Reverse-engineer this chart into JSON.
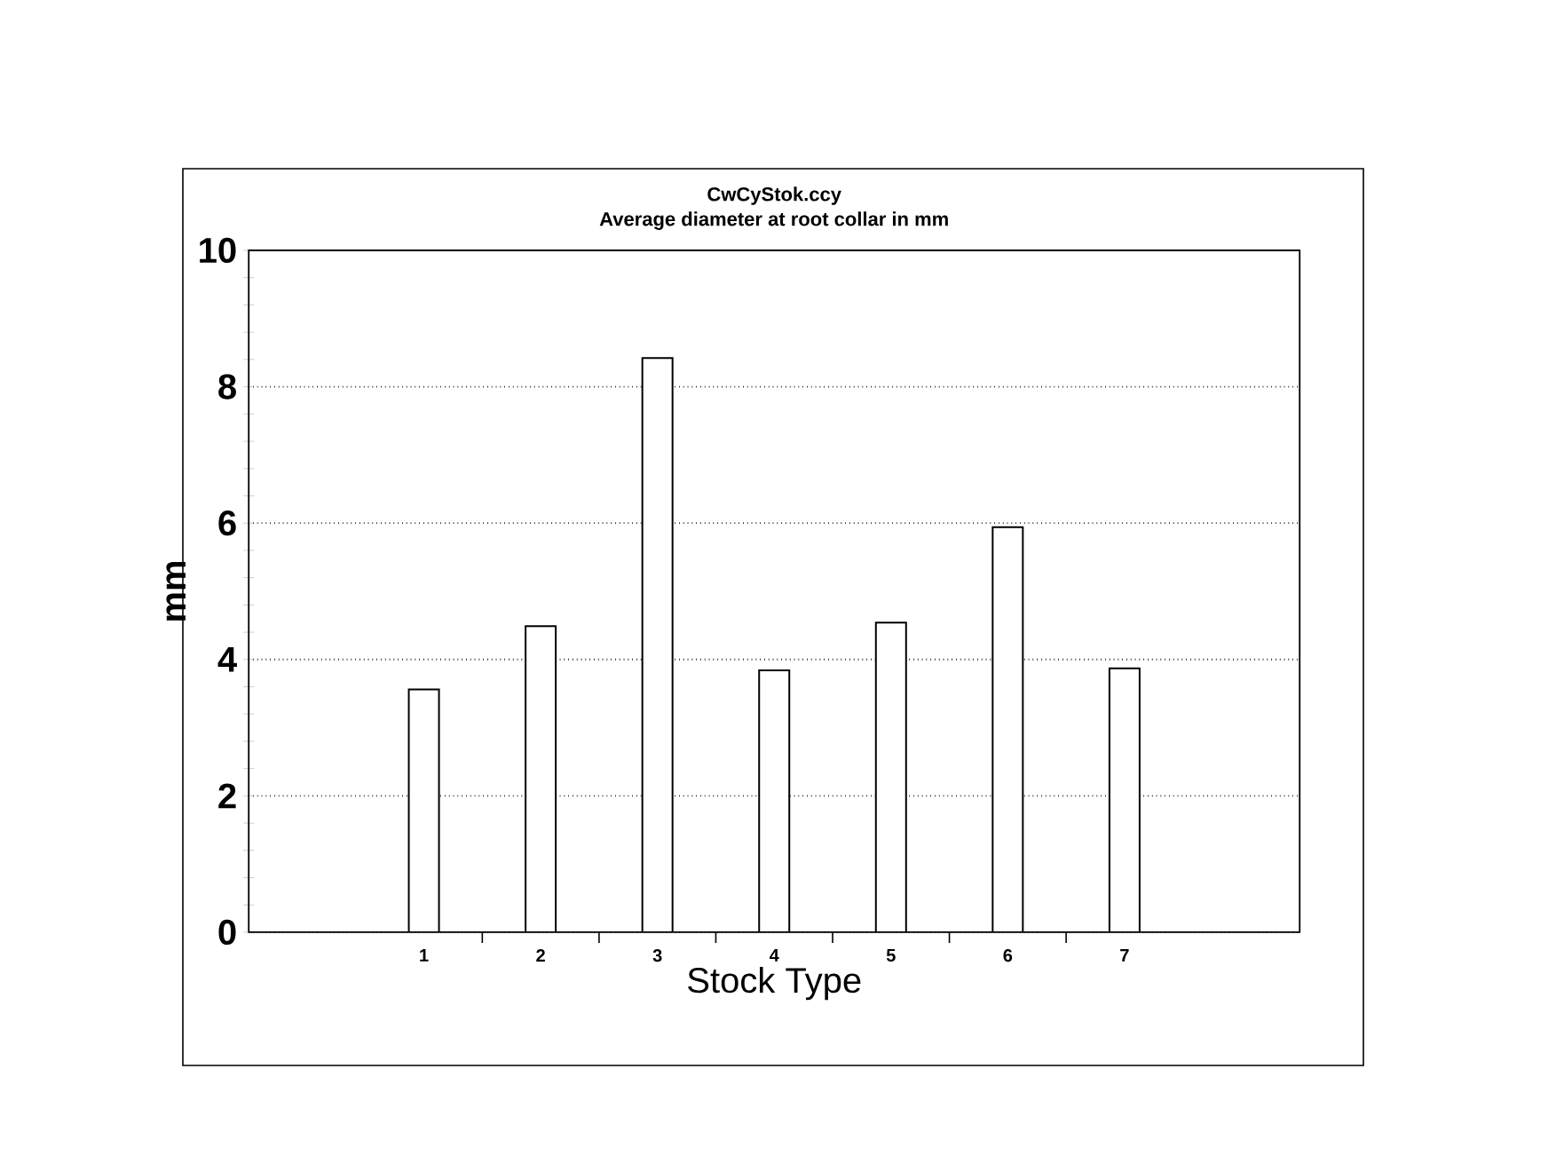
{
  "chart_data": {
    "type": "bar",
    "title": "CwCyStok.ccy",
    "subtitle": "Average diameter at root collar in mm",
    "xlabel": "Stock Type",
    "ylabel": "mm",
    "categories": [
      null,
      "1",
      "2",
      "3",
      "4",
      "5",
      "6",
      "7",
      null
    ],
    "values": [
      null,
      3.56,
      4.49,
      8.42,
      3.84,
      4.54,
      5.94,
      3.87,
      null
    ],
    "color": "#ffffff",
    "ylim": [
      0,
      10
    ],
    "yticks": [
      0,
      2,
      4,
      6,
      8,
      10
    ],
    "grid": "y"
  }
}
